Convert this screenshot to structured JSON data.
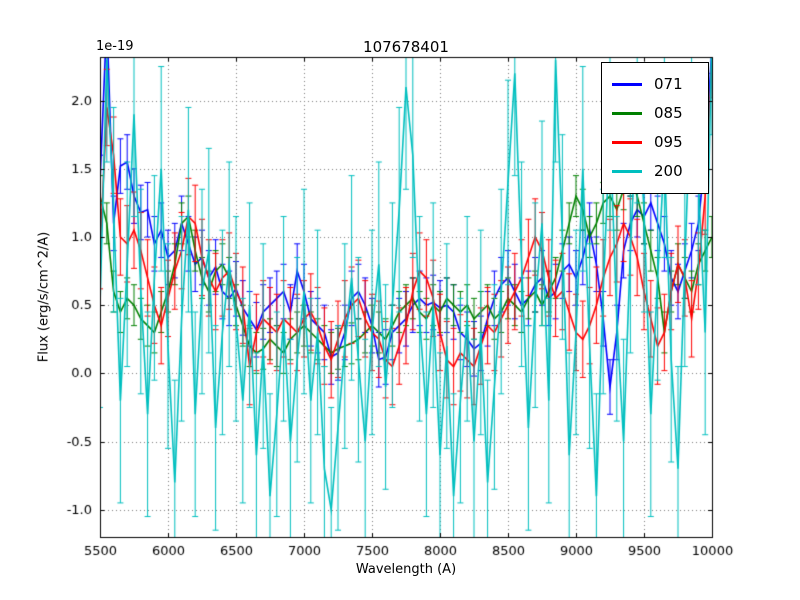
{
  "chart_data": {
    "type": "line",
    "title": "107678401",
    "xlabel": "Wavelength (A)",
    "ylabel": "Flux (erg/s/cm^2/A)",
    "y_offset_text": "1e-19",
    "xlim": [
      5500,
      10000
    ],
    "ylim": [
      -1.2,
      2.32
    ],
    "xticks": [
      5500,
      6000,
      6500,
      7000,
      7500,
      8000,
      8500,
      9000,
      9500,
      10000
    ],
    "yticks": [
      2.0,
      1.5,
      1.0,
      0.5,
      0.0,
      -0.5,
      -1.0
    ],
    "ytick_labels": [
      "2.0",
      "1.5",
      "1.0",
      "0.5",
      "0.0",
      "-0.5",
      "-1.0"
    ],
    "grid": true,
    "grid_style": "dotted",
    "legend_position": "upper right",
    "x_start": 5500,
    "x_step": 50,
    "series": [
      {
        "name": "071",
        "color": "#0000FF",
        "yerr": 0.2,
        "values": [
          1.4,
          2.6,
          1.1,
          1.52,
          1.55,
          1.3,
          1.18,
          1.2,
          0.95,
          1.05,
          0.85,
          0.9,
          1.1,
          0.95,
          0.8,
          0.85,
          0.7,
          0.78,
          0.6,
          0.55,
          0.62,
          0.48,
          0.4,
          0.32,
          0.45,
          0.5,
          0.55,
          0.6,
          0.45,
          0.75,
          0.6,
          0.4,
          0.35,
          0.3,
          0.12,
          0.15,
          0.3,
          0.55,
          0.6,
          0.5,
          0.35,
          0.1,
          0.12,
          0.3,
          0.35,
          0.4,
          0.5,
          0.55,
          0.5,
          0.52,
          0.48,
          0.5,
          0.45,
          0.3,
          0.25,
          0.18,
          0.22,
          0.4,
          0.55,
          0.65,
          0.7,
          0.6,
          0.5,
          0.55,
          0.65,
          0.7,
          0.55,
          0.6,
          0.75,
          0.8,
          0.7,
          0.85,
          1.05,
          0.8,
          0.4,
          -0.1,
          0.3,
          0.9,
          1.1,
          1.2,
          1.15,
          1.25,
          1.1,
          0.95,
          0.7,
          0.6,
          0.75,
          0.9,
          1.1,
          1.6,
          2.4
        ]
      },
      {
        "name": "085",
        "color": "#008000",
        "yerr": 0.15,
        "values": [
          1.3,
          1.1,
          0.6,
          0.45,
          0.55,
          0.5,
          0.4,
          0.35,
          0.3,
          0.45,
          0.6,
          0.8,
          1.1,
          1.15,
          0.9,
          0.7,
          0.6,
          0.75,
          0.8,
          0.7,
          0.5,
          0.35,
          0.2,
          0.15,
          0.18,
          0.25,
          0.2,
          0.15,
          0.25,
          0.3,
          0.35,
          0.3,
          0.25,
          0.2,
          0.15,
          0.18,
          0.2,
          0.22,
          0.25,
          0.3,
          0.35,
          0.3,
          0.25,
          0.35,
          0.45,
          0.5,
          0.55,
          0.45,
          0.4,
          0.5,
          0.45,
          0.55,
          0.5,
          0.45,
          0.5,
          0.4,
          0.45,
          0.5,
          0.4,
          0.45,
          0.55,
          0.5,
          0.45,
          0.55,
          0.6,
          0.5,
          0.6,
          0.7,
          0.9,
          1.1,
          1.3,
          1.2,
          1.0,
          1.1,
          1.25,
          1.3,
          1.2,
          1.35,
          1.45,
          1.3,
          1.1,
          0.9,
          0.7,
          0.3,
          0.6,
          0.8,
          0.7,
          0.6,
          0.8,
          0.9,
          1.0
        ]
      },
      {
        "name": "095",
        "color": "#FF0000",
        "yerr": 0.28,
        "values": [
          0.9,
          1.95,
          1.6,
          1.0,
          0.95,
          1.05,
          0.9,
          0.7,
          0.5,
          0.35,
          0.55,
          0.75,
          0.9,
          1.15,
          1.1,
          0.85,
          0.7,
          0.6,
          0.7,
          0.75,
          0.6,
          0.5,
          0.05,
          0.3,
          0.4,
          0.35,
          0.3,
          0.4,
          0.35,
          0.3,
          0.4,
          0.45,
          0.35,
          0.2,
          0.1,
          0.25,
          0.4,
          0.5,
          0.55,
          0.4,
          0.3,
          0.25,
          0.1,
          0.05,
          0.2,
          0.35,
          0.6,
          0.75,
          0.7,
          0.55,
          0.3,
          0.1,
          0.05,
          0.15,
          0.1,
          0.05,
          0.2,
          0.35,
          0.3,
          0.4,
          0.5,
          0.6,
          0.7,
          0.85,
          1.0,
          0.9,
          0.7,
          0.55,
          0.6,
          0.45,
          0.3,
          0.25,
          0.35,
          0.5,
          0.7,
          0.85,
          0.95,
          1.1,
          1.0,
          0.85,
          0.6,
          0.4,
          0.2,
          0.3,
          0.6,
          0.8,
          0.7,
          0.4,
          0.75,
          1.3,
          2.3
        ]
      },
      {
        "name": "200",
        "color": "#00BFBF",
        "yerr": 0.75,
        "values": [
          0.5,
          2.3,
          1.2,
          -0.2,
          0.8,
          1.9,
          0.6,
          -0.3,
          0.7,
          1.5,
          0.2,
          -0.8,
          0.4,
          1.2,
          -0.3,
          0.6,
          0.9,
          -0.4,
          0.3,
          0.8,
          0.4,
          -0.2,
          0.5,
          -0.6,
          0.2,
          -0.9,
          -0.3,
          0.4,
          -0.5,
          0.1,
          0.6,
          -0.2,
          0.3,
          -0.7,
          -1.0,
          -0.4,
          0.2,
          0.7,
          0.1,
          -0.5,
          0.3,
          0.8,
          -0.1,
          0.5,
          1.2,
          2.1,
          1.6,
          0.4,
          -0.3,
          0.5,
          -0.6,
          0.2,
          -0.9,
          -0.2,
          0.4,
          -0.5,
          0.3,
          -0.8,
          -0.1,
          0.6,
          1.4,
          2.2,
          0.8,
          -0.4,
          0.5,
          1.1,
          -0.2,
          2.3,
          1.0,
          -0.6,
          0.3,
          1.5,
          0.2,
          -0.9,
          0.6,
          1.8,
          0.4,
          -0.5,
          0.9,
          2.0,
          1.2,
          -0.3,
          0.7,
          1.6,
          0.1,
          -0.7,
          0.8,
          2.2,
          1.4,
          0.3,
          2.5
        ]
      }
    ]
  }
}
